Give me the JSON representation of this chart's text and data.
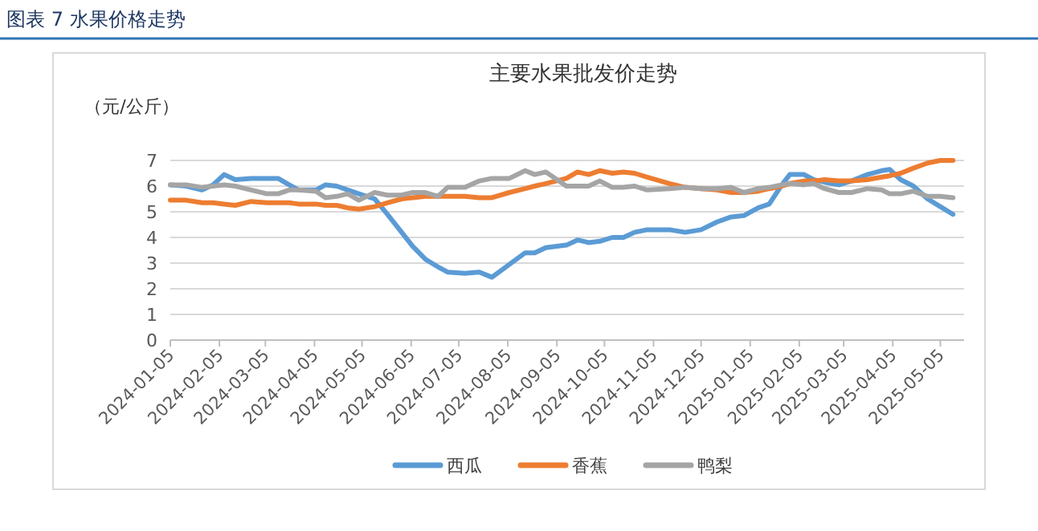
{
  "chart_data": {
    "type": "line",
    "title": "主要水果批发价走势",
    "ylabel": "（元/公斤）",
    "annotations": [
      "图表 7  水果价格走势"
    ],
    "x": [
      "2024-01-05",
      "2024-01-15",
      "2024-01-25",
      "2024-02-01",
      "2024-02-08",
      "2024-02-15",
      "2024-02-25",
      "2024-03-06",
      "2024-03-13",
      "2024-03-20",
      "2024-03-26",
      "2024-04-06",
      "2024-04-12",
      "2024-04-19",
      "2024-04-26",
      "2024-05-03",
      "2024-05-13",
      "2024-05-21",
      "2024-05-30",
      "2024-06-06",
      "2024-06-14",
      "2024-06-22",
      "2024-06-28",
      "2024-07-09",
      "2024-07-18",
      "2024-07-26",
      "2024-08-06",
      "2024-08-16",
      "2024-08-22",
      "2024-08-29",
      "2024-09-11",
      "2024-09-18",
      "2024-09-25",
      "2024-10-02",
      "2024-10-10",
      "2024-10-17",
      "2024-10-24",
      "2024-11-01",
      "2024-11-15",
      "2024-11-25",
      "2024-12-05",
      "2024-12-15",
      "2024-12-24",
      "2025-01-01",
      "2025-01-10",
      "2025-01-17",
      "2025-01-25",
      "2025-01-30",
      "2025-02-08",
      "2025-02-14",
      "2025-02-21",
      "2025-03-02",
      "2025-03-10",
      "2025-03-20",
      "2025-03-29",
      "2025-04-03",
      "2025-04-10",
      "2025-04-18",
      "2025-04-27",
      "2025-05-05",
      "2025-05-13"
    ],
    "series": [
      {
        "name": "西瓜",
        "color": "#5b9bd5",
        "values": [
          6.05,
          6.0,
          5.85,
          6.05,
          6.45,
          6.25,
          6.3,
          6.3,
          6.3,
          6.05,
          5.85,
          5.85,
          6.05,
          6.0,
          5.85,
          5.7,
          5.5,
          4.9,
          4.2,
          3.65,
          3.15,
          2.85,
          2.65,
          2.6,
          2.65,
          2.45,
          2.95,
          3.4,
          3.4,
          3.6,
          3.7,
          3.9,
          3.8,
          3.85,
          4.0,
          4.0,
          4.2,
          4.3,
          4.3,
          4.2,
          4.3,
          4.6,
          4.8,
          4.85,
          5.15,
          5.3,
          6.05,
          6.45,
          6.45,
          6.25,
          6.15,
          6.05,
          6.2,
          6.45,
          6.6,
          6.65,
          6.25,
          6.0,
          5.5,
          5.2,
          4.9
        ]
      },
      {
        "name": "香蕉",
        "color": "#ed7d31",
        "values": [
          5.45,
          5.45,
          5.35,
          5.35,
          5.3,
          5.25,
          5.4,
          5.35,
          5.35,
          5.35,
          5.3,
          5.3,
          5.25,
          5.25,
          5.15,
          5.1,
          5.2,
          5.35,
          5.5,
          5.55,
          5.6,
          5.6,
          5.6,
          5.6,
          5.55,
          5.55,
          5.75,
          5.9,
          6.0,
          6.1,
          6.3,
          6.55,
          6.45,
          6.6,
          6.5,
          6.55,
          6.5,
          6.35,
          6.1,
          5.95,
          5.9,
          5.85,
          5.75,
          5.75,
          5.8,
          5.9,
          6.0,
          6.1,
          6.2,
          6.2,
          6.25,
          6.2,
          6.2,
          6.25,
          6.35,
          6.4,
          6.5,
          6.7,
          6.9,
          7.0,
          7.0
        ]
      },
      {
        "name": "鸭梨",
        "color": "#a5a5a5",
        "values": [
          6.05,
          6.05,
          5.95,
          6.0,
          6.05,
          6.0,
          5.85,
          5.7,
          5.7,
          5.85,
          5.85,
          5.8,
          5.55,
          5.6,
          5.7,
          5.45,
          5.75,
          5.65,
          5.65,
          5.75,
          5.75,
          5.6,
          5.95,
          5.95,
          6.2,
          6.3,
          6.3,
          6.6,
          6.45,
          6.55,
          6.0,
          6.0,
          6.0,
          6.2,
          5.95,
          5.95,
          6.0,
          5.85,
          5.9,
          5.95,
          5.9,
          5.9,
          5.95,
          5.75,
          5.9,
          5.95,
          6.05,
          6.1,
          6.05,
          6.1,
          5.9,
          5.75,
          5.75,
          5.9,
          5.85,
          5.7,
          5.7,
          5.8,
          5.6,
          5.6,
          5.55
        ]
      }
    ],
    "xlim": [
      "2024-01-05",
      "2025-05-20"
    ],
    "xticks": [
      "2024-01-05",
      "2024-02-05",
      "2024-03-05",
      "2024-04-05",
      "2024-05-05",
      "2024-06-05",
      "2024-07-05",
      "2024-08-05",
      "2024-09-05",
      "2024-10-05",
      "2024-11-05",
      "2024-12-05",
      "2025-01-05",
      "2025-02-05",
      "2025-03-05",
      "2025-04-05",
      "2025-05-05"
    ],
    "ylim": [
      0,
      7
    ],
    "yticks": [
      0,
      1,
      2,
      3,
      4,
      5,
      6,
      7
    ],
    "grid": "y",
    "legend": "bottom",
    "marker": "none",
    "line_style": "solid"
  }
}
